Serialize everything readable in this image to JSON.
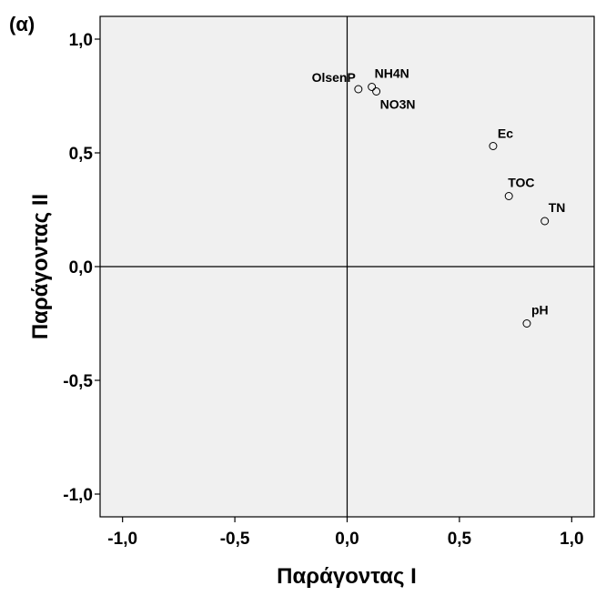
{
  "panel_label": "(α)",
  "chart_data": {
    "type": "scatter",
    "xlabel": "Παράγοντας I",
    "ylabel": "Παράγοντας II",
    "xlim": [
      -1.1,
      1.1
    ],
    "ylim": [
      -1.1,
      1.1
    ],
    "xticks": [
      -1.0,
      -0.5,
      0.0,
      0.5,
      1.0
    ],
    "yticks": [
      -1.0,
      -0.5,
      0.0,
      0.5,
      1.0
    ],
    "xtick_labels": [
      "-1,0",
      "-0,5",
      "0,0",
      "0,5",
      "1,0"
    ],
    "ytick_labels": [
      "-1,0",
      "-0,5",
      "0,0",
      "0,5",
      "1,0"
    ],
    "reference_lines": {
      "x": 0,
      "y": 0
    },
    "grid": false,
    "legend": "none",
    "plot_background": "#f0f0f0",
    "marker": "open-circle",
    "points": [
      {
        "label": "OlsenP",
        "x": 0.05,
        "y": 0.78
      },
      {
        "label": "NH4N",
        "x": 0.11,
        "y": 0.79
      },
      {
        "label": "NO3N",
        "x": 0.13,
        "y": 0.77
      },
      {
        "label": "Ec",
        "x": 0.65,
        "y": 0.53
      },
      {
        "label": "TOC",
        "x": 0.72,
        "y": 0.31
      },
      {
        "label": "TN",
        "x": 0.88,
        "y": 0.2
      },
      {
        "label": "pH",
        "x": 0.8,
        "y": -0.25
      }
    ]
  }
}
